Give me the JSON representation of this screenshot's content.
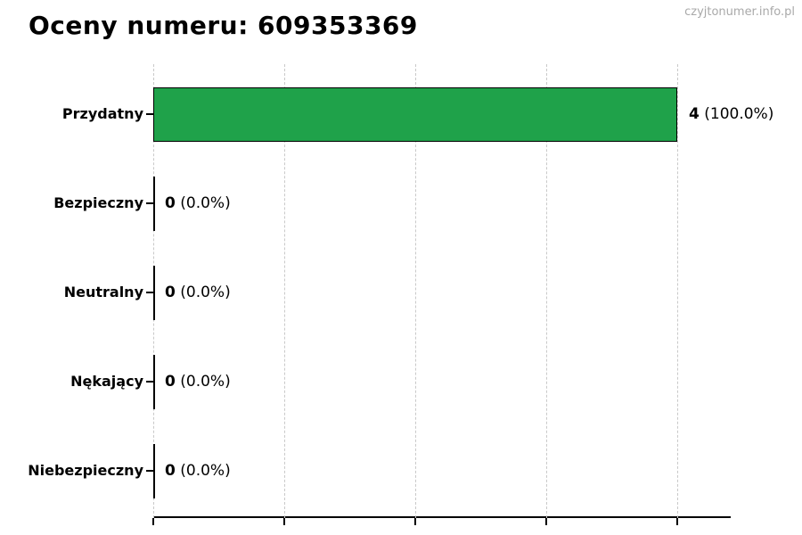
{
  "page": {
    "title": "Oceny numeru: 609353369",
    "watermark": "czyjtonumer.info.pl"
  },
  "colors": {
    "bar_fill": "#1fa24a",
    "bar_border": "#000000",
    "zero_bar": "#000000",
    "grid": "#c9c9c9",
    "axis": "#000000",
    "title_text": "#000000",
    "watermark_text": "#a9a9a9"
  },
  "chart_data": {
    "type": "bar",
    "orientation": "horizontal",
    "title": "Oceny numeru: 609353369",
    "categories": [
      "Przydatny",
      "Bezpieczny",
      "Neutralny",
      "Nękający",
      "Niebezpieczny"
    ],
    "values": [
      4,
      0,
      0,
      0,
      0
    ],
    "percent_labels": [
      "100.0%",
      "0.0%",
      "0.0%",
      "0.0%",
      "0.0%"
    ],
    "value_label_format": "{value} ({percent})",
    "xlim": [
      0,
      4.41
    ],
    "x_gridlines": [
      0,
      1,
      2,
      3,
      4
    ],
    "x_tick_labels": [],
    "grid": "vertical-dashed",
    "legend": "none",
    "xlabel": "",
    "ylabel": ""
  }
}
